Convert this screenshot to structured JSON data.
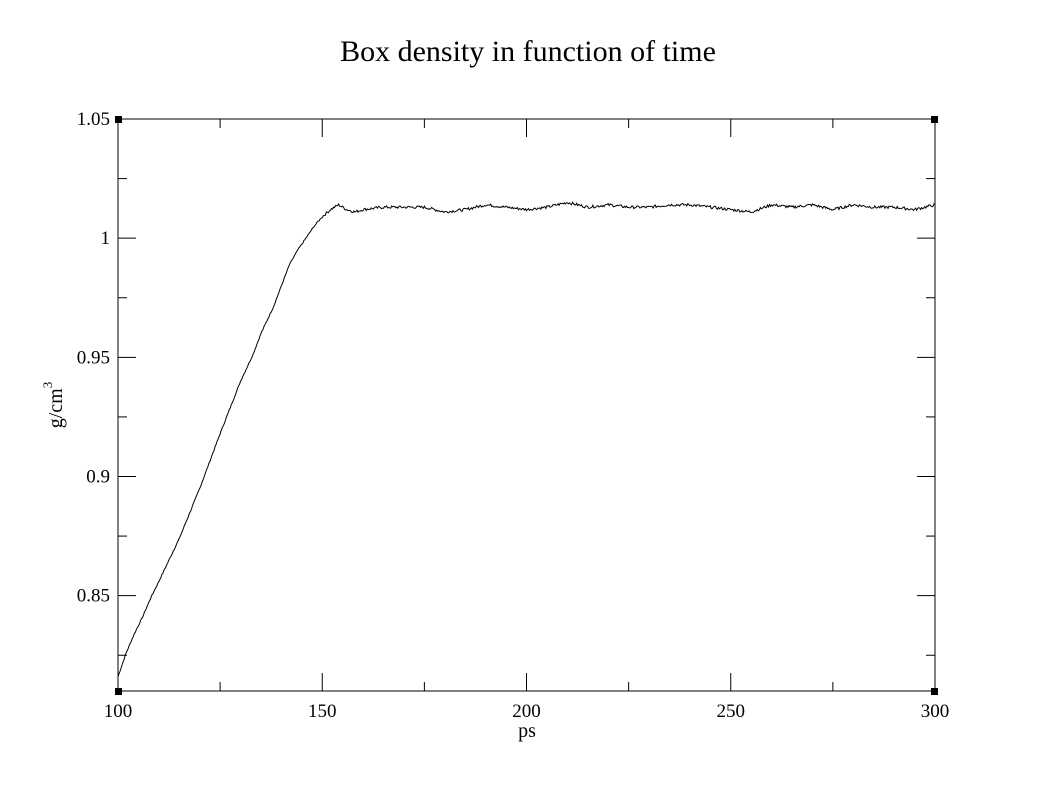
{
  "chart_data": {
    "type": "line",
    "title": "Box density in function of time",
    "xlabel": "ps",
    "ylabel": "g/cm",
    "ylabel_superscript": "3",
    "xlim": [
      100,
      300
    ],
    "ylim": [
      0.81,
      1.05
    ],
    "x_ticks": [
      100,
      150,
      200,
      250,
      300
    ],
    "x_tick_labels": [
      "100",
      "150",
      "200",
      "250",
      "300"
    ],
    "y_ticks": [
      0.85,
      0.9,
      0.95,
      1.0,
      1.05
    ],
    "y_tick_labels": [
      "0.85",
      "0.9",
      "0.95",
      "1",
      "1.05"
    ],
    "x_minor_step": 25,
    "y_minor_step": 0.025,
    "grid": false,
    "legend": "none",
    "series": [
      {
        "color": "#000000",
        "x": [
          100,
          102,
          104,
          106,
          108,
          110,
          115,
          120,
          125,
          130,
          133,
          135,
          138,
          140,
          142,
          144,
          146,
          148,
          150,
          152,
          154,
          155,
          156,
          158,
          160,
          165,
          170,
          175,
          180,
          185,
          190,
          195,
          200,
          205,
          210,
          215,
          220,
          225,
          230,
          235,
          240,
          245,
          250,
          255,
          260,
          265,
          270,
          275,
          280,
          285,
          290,
          295,
          300
        ],
        "y": [
          0.816,
          0.826,
          0.834,
          0.841,
          0.849,
          0.856,
          0.874,
          0.895,
          0.918,
          0.94,
          0.951,
          0.96,
          0.971,
          0.98,
          0.989,
          0.995,
          1.0,
          1.005,
          1.009,
          1.012,
          1.014,
          1.013,
          1.012,
          1.011,
          1.012,
          1.013,
          1.013,
          1.013,
          1.011,
          1.012,
          1.014,
          1.013,
          1.012,
          1.013,
          1.015,
          1.013,
          1.014,
          1.013,
          1.013,
          1.014,
          1.014,
          1.013,
          1.012,
          1.011,
          1.014,
          1.013,
          1.014,
          1.012,
          1.014,
          1.013,
          1.013,
          1.012,
          1.014
        ]
      }
    ]
  }
}
